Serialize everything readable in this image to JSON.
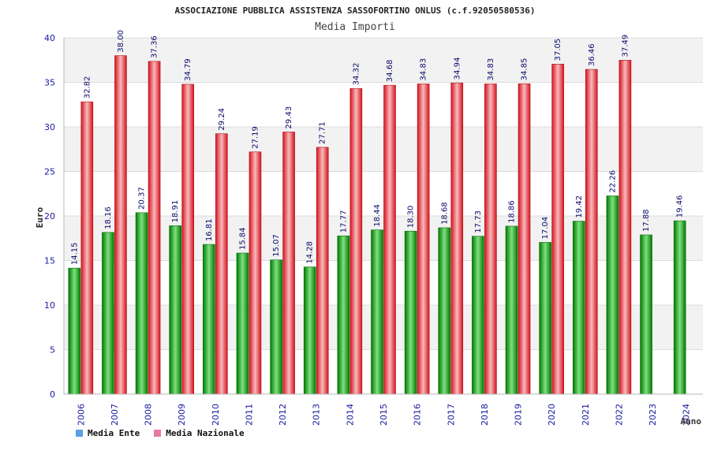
{
  "chart_data": {
    "type": "bar",
    "title": "ASSOCIAZIONE PUBBLICA ASSISTENZA SASSOFORTINO ONLUS (c.f.92050580536)",
    "subtitle": "Media Importi",
    "ylabel": "Euro",
    "xlabel": "Anno",
    "ylim": [
      0,
      40
    ],
    "yticks": [
      0,
      5,
      10,
      15,
      20,
      25,
      30,
      35,
      40
    ],
    "grid": true,
    "legend_position": "bottom-left",
    "categories": [
      "2006",
      "2007",
      "2008",
      "2009",
      "2010",
      "2011",
      "2012",
      "2013",
      "2014",
      "2015",
      "2016",
      "2017",
      "2018",
      "2019",
      "2020",
      "2021",
      "2022",
      "2023",
      "2024"
    ],
    "series": [
      {
        "name": "Media Ente",
        "color": "#1aa31a",
        "legend_color": "#5aa0e6",
        "values": [
          14.15,
          18.16,
          20.37,
          18.91,
          16.81,
          15.84,
          15.07,
          14.28,
          17.77,
          18.44,
          18.3,
          18.68,
          17.73,
          18.86,
          17.04,
          19.42,
          22.26,
          17.88,
          19.46
        ],
        "labels": [
          "14.15",
          "18.16",
          "20.37",
          "18.91",
          "16.81",
          "15.84",
          "15.07",
          "14.28",
          "17.77",
          "18.44",
          "18.30",
          "18.68",
          "17.73",
          "18.86",
          "17.04",
          "19.42",
          "22.26",
          "17.88",
          "19.46"
        ]
      },
      {
        "name": "Media Nazionale",
        "color": "#e8323c",
        "legend_color": "#e87aa6",
        "values": [
          32.82,
          38.0,
          37.36,
          34.79,
          29.24,
          27.19,
          29.43,
          27.71,
          34.32,
          34.68,
          34.83,
          34.94,
          34.83,
          34.85,
          37.05,
          36.46,
          37.49,
          null,
          null
        ],
        "labels": [
          "32.82",
          "38.00",
          "37.36",
          "34.79",
          "29.24",
          "27.19",
          "29.43",
          "27.71",
          "34.32",
          "34.68",
          "34.83",
          "34.94",
          "34.83",
          "34.85",
          "37.05",
          "36.46",
          "37.49",
          null,
          null
        ]
      }
    ]
  }
}
